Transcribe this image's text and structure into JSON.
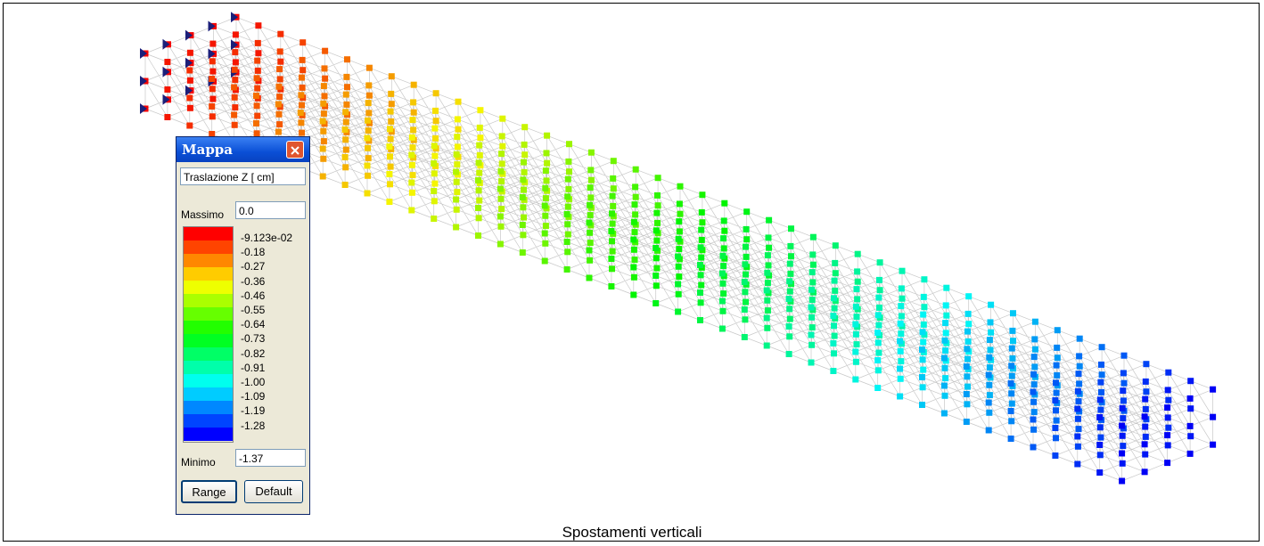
{
  "window": {
    "title": "Mappa",
    "quantity": "Traslazione Z [ cm]",
    "max_label": "Massimo",
    "max_value": "0.0",
    "legend_labels": [
      "-9.123e-02",
      "-0.18",
      "-0.27",
      "-0.36",
      "-0.46",
      "-0.55",
      "-0.64",
      "-0.73",
      "-0.82",
      "-0.91",
      "-1.00",
      "-1.09",
      "-1.19",
      "-1.28"
    ],
    "min_label": "Minimo",
    "min_value": "-1.37",
    "buttons": [
      "Range",
      "Default"
    ]
  },
  "caption": "Spostamenti verticali"
}
